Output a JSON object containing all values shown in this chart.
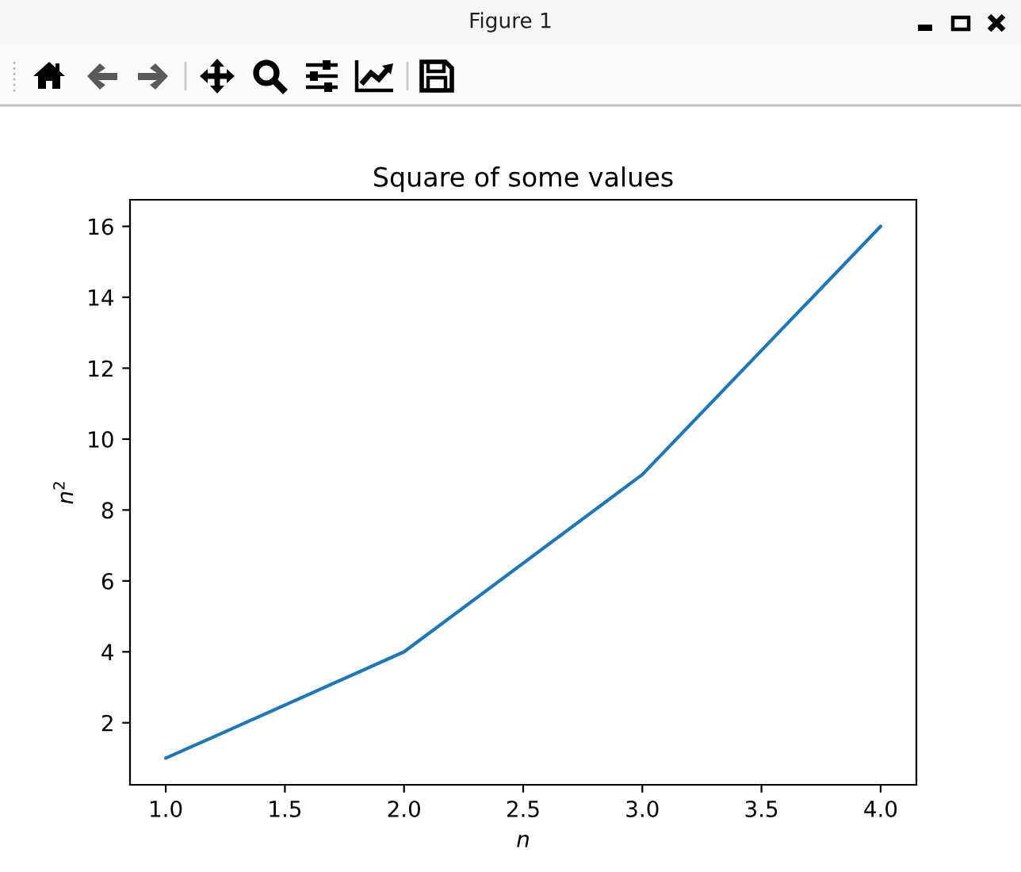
{
  "chart_data": {
    "type": "line",
    "title": "Square of some values",
    "xlabel": "n",
    "ylabel": "n$^{2}$",
    "x": [
      1,
      2,
      3,
      4
    ],
    "series": [
      {
        "color": "#1f77b4",
        "values": [
          1,
          4,
          9,
          16
        ]
      }
    ],
    "xlim": [
      0.85,
      4.15
    ],
    "ylim": [
      0.25,
      16.75
    ],
    "xticks": [
      {
        "value": 1,
        "label": "1.0"
      },
      {
        "value": 1.5,
        "label": "1.5"
      },
      {
        "value": 2,
        "label": "2.0"
      },
      {
        "value": 2.5,
        "label": "2.5"
      },
      {
        "value": 3,
        "label": "3.0"
      },
      {
        "value": 3.5,
        "label": "3.5"
      },
      {
        "value": 4,
        "label": "4.0"
      }
    ],
    "yticks": [
      2,
      4,
      6,
      8,
      10,
      12,
      14,
      16
    ],
    "grid": false,
    "marker": "none",
    "line_style": "solid",
    "annotations": [
      "Figure 1"
    ]
  }
}
